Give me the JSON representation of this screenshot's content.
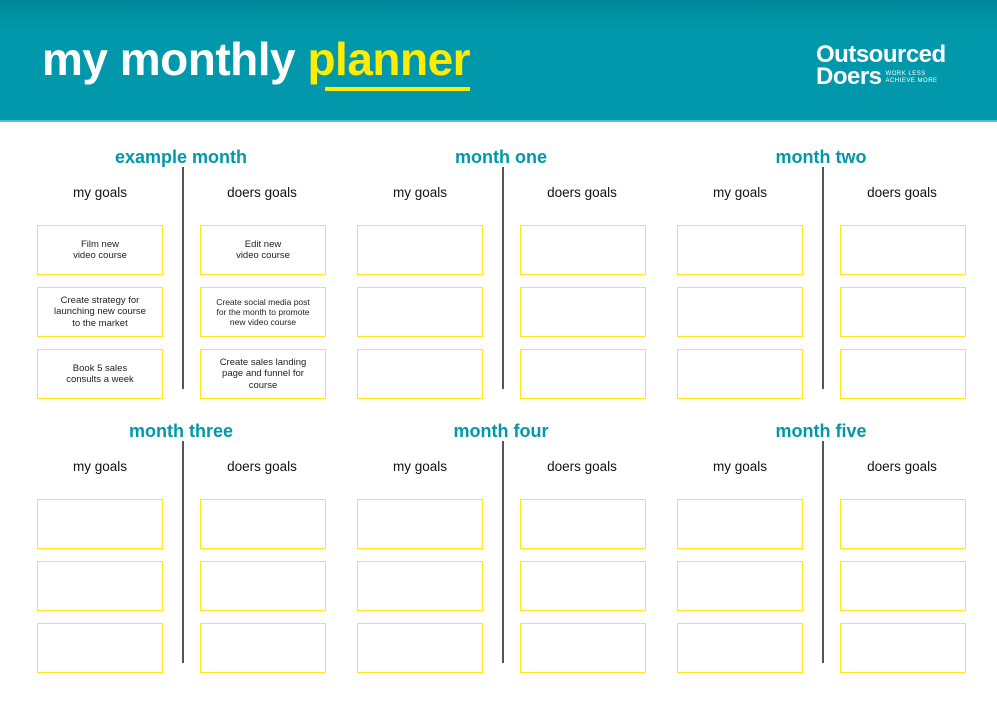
{
  "header": {
    "title_part1": "my monthly ",
    "title_part2": "planner",
    "bg_color": "#0098aa",
    "accent_color": "#ffec00"
  },
  "logo": {
    "line1": "Outsourced",
    "line2": "Doers",
    "tagline1": "WORK LESS",
    "tagline2": "ACHIEVE MORE"
  },
  "labels": {
    "my_goals": "my goals",
    "doers_goals": "doers goals"
  },
  "sections": [
    {
      "title": "example month",
      "my_goals": [
        "Film new\nvideo course",
        "Create strategy for\nlaunching new course\nto the market",
        "Book 5 sales\nconsults a week"
      ],
      "doers_goals": [
        "Edit new\nvideo course",
        "Create social media post\nfor the month to promote\nnew video course",
        "Create sales landing\npage and funnel for\ncourse"
      ]
    },
    {
      "title": "month one",
      "my_goals": [
        "",
        "",
        ""
      ],
      "doers_goals": [
        "",
        "",
        ""
      ]
    },
    {
      "title": "month two",
      "my_goals": [
        "",
        "",
        ""
      ],
      "doers_goals": [
        "",
        "",
        ""
      ]
    },
    {
      "title": "month three",
      "my_goals": [
        "",
        "",
        ""
      ],
      "doers_goals": [
        "",
        "",
        ""
      ]
    },
    {
      "title": "month four",
      "my_goals": [
        "",
        "",
        ""
      ],
      "doers_goals": [
        "",
        "",
        ""
      ]
    },
    {
      "title": "month five",
      "my_goals": [
        "",
        "",
        ""
      ],
      "doers_goals": [
        "",
        "",
        ""
      ]
    }
  ]
}
